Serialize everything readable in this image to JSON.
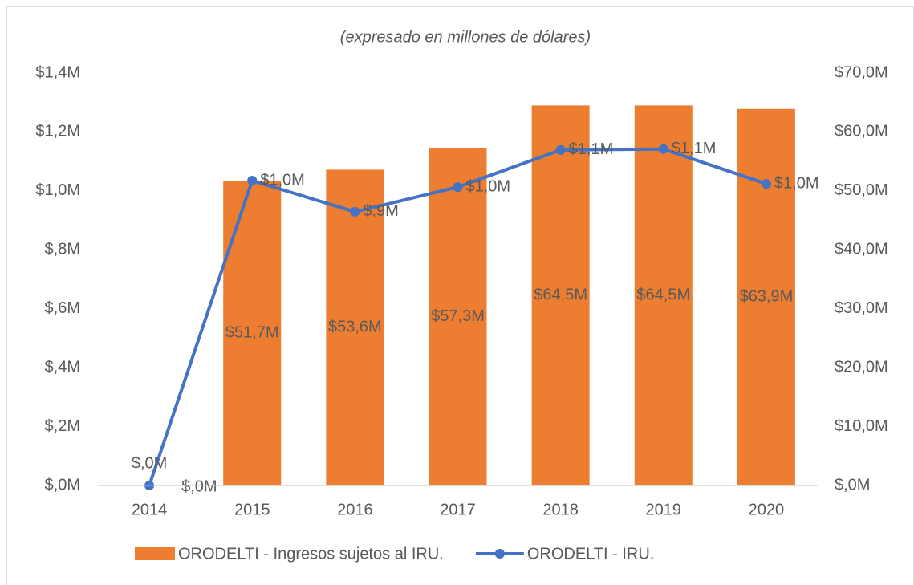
{
  "chart_data": {
    "type": "combo",
    "title": "(expresado en millones de dólares)",
    "categories": [
      "2014",
      "2015",
      "2016",
      "2017",
      "2018",
      "2019",
      "2020"
    ],
    "series": [
      {
        "name": "ORODELTI - Ingresos sujetos al IRU.",
        "type": "bar",
        "axis": "y2",
        "color": "#ED7D31",
        "values": [
          0,
          51.7,
          53.6,
          57.3,
          64.5,
          64.5,
          63.9
        ],
        "value_labels": [
          "$,0M",
          "$51,7M",
          "$53,6M",
          "$57,3M",
          "$64,5M",
          "$64,5M",
          "$63,9M"
        ]
      },
      {
        "name": "ORODELTI - IRU.",
        "type": "line",
        "axis": "y",
        "color": "#4472C4",
        "values": [
          0,
          1.035,
          0.929,
          1.013,
          1.139,
          1.142,
          1.024
        ],
        "value_labels": [
          "$,0M",
          "$1,0M",
          "$,9M",
          "$1,0M",
          "$1,1M",
          "$1,1M",
          "$1,0M"
        ]
      }
    ],
    "ylim": [
      0,
      1.4
    ],
    "yticks": [
      {
        "value": 0,
        "label": "$,0M"
      },
      {
        "value": 0.2,
        "label": "$,2M"
      },
      {
        "value": 0.4,
        "label": "$,4M"
      },
      {
        "value": 0.6,
        "label": "$,6M"
      },
      {
        "value": 0.8,
        "label": "$,8M"
      },
      {
        "value": 1.0,
        "label": "$1,0M"
      },
      {
        "value": 1.2,
        "label": "$1,2M"
      },
      {
        "value": 1.4,
        "label": "$1,4M"
      }
    ],
    "y2lim": [
      0,
      70
    ],
    "y2ticks": [
      {
        "value": 0,
        "label": "$,0M"
      },
      {
        "value": 10,
        "label": "$10,0M"
      },
      {
        "value": 20,
        "label": "$20,0M"
      },
      {
        "value": 30,
        "label": "$30,0M"
      },
      {
        "value": 40,
        "label": "$40,0M"
      },
      {
        "value": 50,
        "label": "$50,0M"
      },
      {
        "value": 60,
        "label": "$60,0M"
      },
      {
        "value": 70,
        "label": "$70,0M"
      }
    ],
    "legend": "bottom",
    "grid": false
  }
}
